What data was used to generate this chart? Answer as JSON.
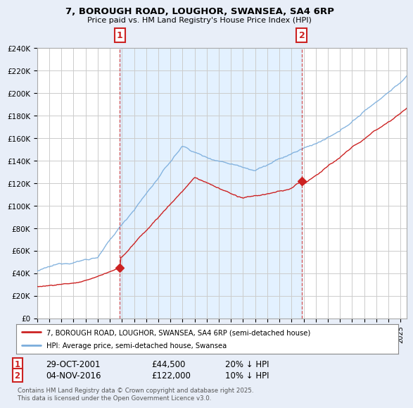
{
  "title": "7, BOROUGH ROAD, LOUGHOR, SWANSEA, SA4 6RP",
  "subtitle": "Price paid vs. HM Land Registry's House Price Index (HPI)",
  "xlim_start": 1995.0,
  "xlim_end": 2025.5,
  "ylim": [
    0,
    240000
  ],
  "yticks": [
    0,
    20000,
    40000,
    60000,
    80000,
    100000,
    120000,
    140000,
    160000,
    180000,
    200000,
    220000,
    240000
  ],
  "ytick_labels": [
    "£0",
    "£20K",
    "£40K",
    "£60K",
    "£80K",
    "£100K",
    "£120K",
    "£140K",
    "£160K",
    "£180K",
    "£200K",
    "£220K",
    "£240K"
  ],
  "sale1_year": 2001.83,
  "sale1_price": 44500,
  "sale1_label": "1",
  "sale1_date": "29-OCT-2001",
  "sale1_price_str": "£44,500",
  "sale1_hpi": "20% ↓ HPI",
  "sale2_year": 2016.85,
  "sale2_price": 122000,
  "sale2_label": "2",
  "sale2_date": "04-NOV-2016",
  "sale2_price_str": "£122,000",
  "sale2_hpi": "10% ↓ HPI",
  "hpi_color": "#7aaddc",
  "price_color": "#cc2222",
  "vline_color": "#cc3333",
  "shade_color": "#ddeeff",
  "legend_label1": "7, BOROUGH ROAD, LOUGHOR, SWANSEA, SA4 6RP (semi-detached house)",
  "legend_label2": "HPI: Average price, semi-detached house, Swansea",
  "footnote": "Contains HM Land Registry data © Crown copyright and database right 2025.\nThis data is licensed under the Open Government Licence v3.0.",
  "bg_color": "#e8eef8",
  "plot_bg_color": "#e8f0f8"
}
